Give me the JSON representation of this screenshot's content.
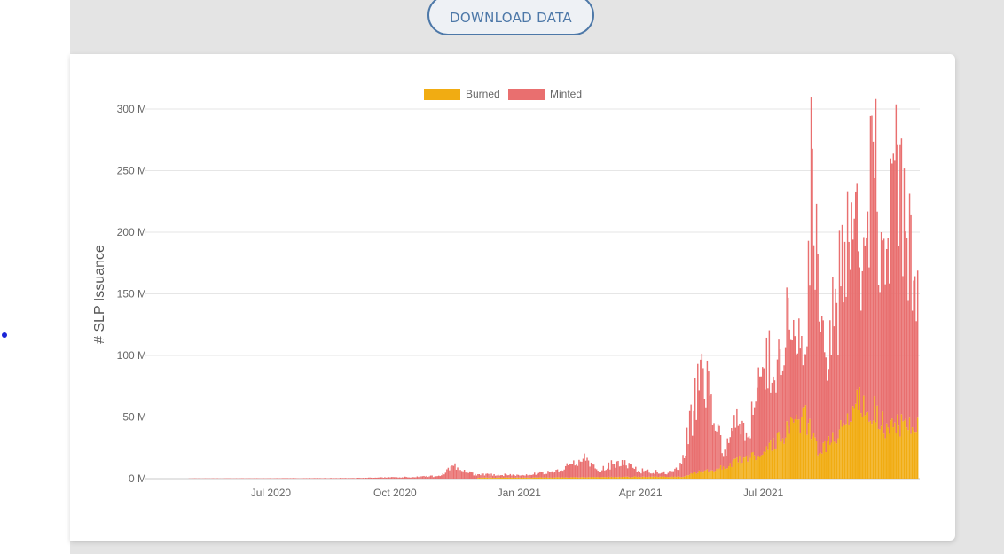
{
  "download_button": {
    "label": "DOWNLOAD DATA"
  },
  "colors": {
    "burned": "#f1ac12",
    "minted": "#e96f6f",
    "grid": "#e6e6e6",
    "axis_text": "#666666",
    "button": "#4d78a8"
  },
  "chart_data": {
    "type": "bar",
    "stacked": true,
    "ylabel": "# SLP Issuance",
    "xlabel": "",
    "ylim": [
      0,
      300000000
    ],
    "y_ticks": [
      {
        "value": 0,
        "label": "0 M"
      },
      {
        "value": 50000000,
        "label": "50 M"
      },
      {
        "value": 100000000,
        "label": "100 M"
      },
      {
        "value": 150000000,
        "label": "150 M"
      },
      {
        "value": 200000000,
        "label": "200 M"
      },
      {
        "value": 250000000,
        "label": "250 M"
      },
      {
        "value": 300000000,
        "label": "300 M"
      }
    ],
    "x_ticks": [
      "Jul 2020",
      "Oct 2020",
      "Jan 2021",
      "Apr 2021",
      "Jul 2021"
    ],
    "grid": true,
    "legend_position": "top-center",
    "series": [
      {
        "name": "Burned",
        "color": "#f1ac12",
        "points": [
          [
            "2020-12-01",
            800000
          ],
          [
            "2021-01-01",
            800000
          ],
          [
            "2021-02-01",
            1000000
          ],
          [
            "2021-03-01",
            1200000
          ],
          [
            "2021-04-01",
            1500000
          ],
          [
            "2021-05-01",
            1500000
          ],
          [
            "2021-05-16",
            6000000
          ],
          [
            "2021-06-01",
            9000000
          ],
          [
            "2021-06-15",
            16000000
          ],
          [
            "2021-07-01",
            22000000
          ],
          [
            "2021-07-10",
            30000000
          ],
          [
            "2021-07-20",
            40000000
          ],
          [
            "2021-08-01",
            48000000
          ],
          [
            "2021-08-10",
            22000000
          ],
          [
            "2021-08-20",
            30000000
          ],
          [
            "2021-09-01",
            50000000
          ],
          [
            "2021-09-08",
            63000000
          ],
          [
            "2021-09-20",
            55000000
          ],
          [
            "2021-10-01",
            38000000
          ],
          [
            "2021-10-10",
            45000000
          ],
          [
            "2021-10-18",
            47000000
          ]
        ]
      },
      {
        "name": "Minted",
        "color": "#e96f6f",
        "points": [
          [
            "2020-05-01",
            200000
          ],
          [
            "2020-07-01",
            300000
          ],
          [
            "2020-09-01",
            500000
          ],
          [
            "2020-10-01",
            1000000
          ],
          [
            "2020-11-01",
            2000000
          ],
          [
            "2020-11-14",
            9000000
          ],
          [
            "2020-12-01",
            2500000
          ],
          [
            "2021-01-01",
            2000000
          ],
          [
            "2021-02-01",
            5000000
          ],
          [
            "2021-02-15",
            17000000
          ],
          [
            "2021-03-01",
            5000000
          ],
          [
            "2021-03-15",
            13000000
          ],
          [
            "2021-04-01",
            5000000
          ],
          [
            "2021-04-20",
            3000000
          ],
          [
            "2021-05-01",
            10000000
          ],
          [
            "2021-05-16",
            80000000
          ],
          [
            "2021-06-01",
            12000000
          ],
          [
            "2021-06-10",
            30000000
          ],
          [
            "2021-06-20",
            20000000
          ],
          [
            "2021-07-01",
            85000000
          ],
          [
            "2021-07-10",
            45000000
          ],
          [
            "2021-07-20",
            95000000
          ],
          [
            "2021-08-01",
            35000000
          ],
          [
            "2021-08-05",
            200000000
          ],
          [
            "2021-08-15",
            60000000
          ],
          [
            "2021-08-25",
            110000000
          ],
          [
            "2021-09-01",
            170000000
          ],
          [
            "2021-09-10",
            120000000
          ],
          [
            "2021-09-20",
            200000000
          ],
          [
            "2021-10-01",
            160000000
          ],
          [
            "2021-10-05",
            225000000
          ],
          [
            "2021-10-15",
            140000000
          ],
          [
            "2021-10-20",
            120000000
          ]
        ]
      }
    ]
  }
}
